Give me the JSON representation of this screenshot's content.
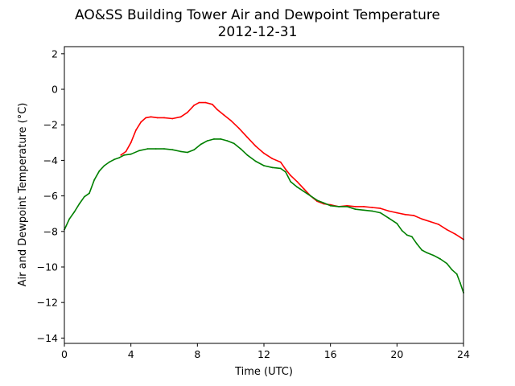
{
  "chart_data": {
    "type": "line",
    "title": "AO&SS Building Tower Air and Dewpoint Temperature",
    "subtitle": "2012-12-31",
    "xlabel": "Time (UTC)",
    "ylabel": "Air and Dewpoint Temperature (°C)",
    "xlim": [
      0,
      24
    ],
    "ylim": [
      -14.3,
      2.4
    ],
    "xticks": [
      0,
      4,
      8,
      12,
      16,
      20,
      24
    ],
    "yticks": [
      2,
      0,
      -2,
      -4,
      -6,
      -8,
      -10,
      -12,
      -14
    ],
    "grid": false,
    "series": [
      {
        "color": "#ff0000",
        "x": [
          3.4,
          3.7,
          4.0,
          4.3,
          4.6,
          4.9,
          5.2,
          5.6,
          6.0,
          6.5,
          7.0,
          7.4,
          7.8,
          8.1,
          8.5,
          8.9,
          9.2,
          9.6,
          10.0,
          10.5,
          11.0,
          11.5,
          12.0,
          12.5,
          13.0,
          13.3,
          13.6,
          14.0,
          14.4,
          14.8,
          15.2,
          15.6,
          16.0,
          16.5,
          17.0,
          17.5,
          18.0,
          18.5,
          19.0,
          19.5,
          20.0,
          20.5,
          21.0,
          21.5,
          22.0,
          22.5,
          23.0,
          23.5,
          24.0
        ],
        "values": [
          -3.7,
          -3.5,
          -3.0,
          -2.3,
          -1.85,
          -1.6,
          -1.55,
          -1.6,
          -1.6,
          -1.65,
          -1.55,
          -1.3,
          -0.9,
          -0.75,
          -0.75,
          -0.85,
          -1.15,
          -1.45,
          -1.75,
          -2.2,
          -2.7,
          -3.2,
          -3.6,
          -3.9,
          -4.1,
          -4.5,
          -4.85,
          -5.2,
          -5.6,
          -6.0,
          -6.3,
          -6.45,
          -6.5,
          -6.6,
          -6.55,
          -6.6,
          -6.6,
          -6.65,
          -6.7,
          -6.85,
          -6.95,
          -7.05,
          -7.1,
          -7.3,
          -7.45,
          -7.6,
          -7.9,
          -8.15,
          -8.45
        ]
      },
      {
        "color": "#008000",
        "x": [
          0.0,
          0.3,
          0.6,
          0.9,
          1.2,
          1.5,
          1.8,
          2.1,
          2.4,
          2.7,
          3.0,
          3.3,
          3.6,
          4.0,
          4.5,
          5.0,
          5.5,
          6.0,
          6.5,
          7.0,
          7.4,
          7.8,
          8.2,
          8.6,
          9.0,
          9.4,
          9.8,
          10.2,
          10.6,
          11.0,
          11.5,
          12.0,
          12.5,
          13.0,
          13.3,
          13.6,
          14.0,
          14.4,
          14.8,
          15.2,
          15.6,
          16.0,
          16.5,
          17.0,
          17.5,
          18.0,
          18.5,
          19.0,
          19.5,
          20.0,
          20.3,
          20.6,
          20.9,
          21.2,
          21.5,
          21.8,
          22.2,
          22.6,
          23.0,
          23.3,
          23.6,
          23.8,
          24.0
        ],
        "values": [
          -7.9,
          -7.3,
          -6.9,
          -6.45,
          -6.05,
          -5.85,
          -5.1,
          -4.6,
          -4.3,
          -4.1,
          -3.95,
          -3.85,
          -3.7,
          -3.65,
          -3.45,
          -3.35,
          -3.35,
          -3.35,
          -3.4,
          -3.5,
          -3.55,
          -3.4,
          -3.1,
          -2.9,
          -2.8,
          -2.8,
          -2.9,
          -3.05,
          -3.35,
          -3.7,
          -4.05,
          -4.3,
          -4.4,
          -4.45,
          -4.65,
          -5.2,
          -5.5,
          -5.75,
          -6.0,
          -6.25,
          -6.4,
          -6.55,
          -6.6,
          -6.6,
          -6.75,
          -6.8,
          -6.85,
          -6.95,
          -7.25,
          -7.55,
          -7.95,
          -8.2,
          -8.3,
          -8.7,
          -9.05,
          -9.2,
          -9.35,
          -9.55,
          -9.8,
          -10.15,
          -10.4,
          -10.9,
          -11.45
        ]
      }
    ]
  }
}
